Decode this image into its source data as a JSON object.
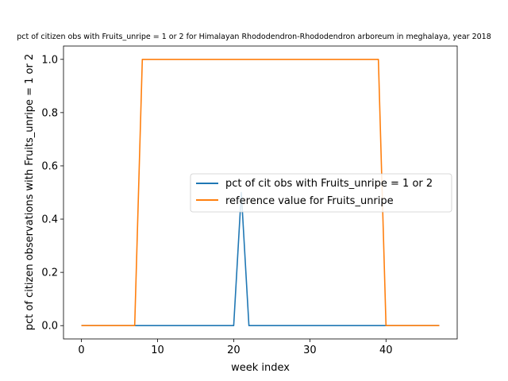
{
  "chart_data": {
    "type": "line",
    "title": "pct of citizen obs with Fruits_unripe = 1 or 2 for Himalayan Rhododendron-Rhododendron arboreum in meghalaya, year 2018",
    "xlabel": "week index",
    "ylabel": "pct of citizen observations with Fruits_unripe = 1 or 2",
    "xlim": [
      -2.35,
      49.35
    ],
    "ylim": [
      -0.05,
      1.05
    ],
    "xticks": [
      0,
      10,
      20,
      30,
      40
    ],
    "yticks": [
      0.0,
      0.2,
      0.4,
      0.6,
      0.8,
      1.0
    ],
    "xtick_labels": [
      "0",
      "10",
      "20",
      "30",
      "40"
    ],
    "ytick_labels": [
      "0.0",
      "0.2",
      "0.4",
      "0.6",
      "0.8",
      "1.0"
    ],
    "grid": false,
    "legend_position": "center-right",
    "x": [
      0,
      1,
      2,
      3,
      4,
      5,
      6,
      7,
      8,
      9,
      10,
      11,
      12,
      13,
      14,
      15,
      16,
      17,
      18,
      19,
      20,
      21,
      22,
      23,
      24,
      25,
      26,
      27,
      28,
      29,
      30,
      31,
      32,
      33,
      34,
      35,
      36,
      37,
      38,
      39,
      40,
      41,
      42,
      43,
      44,
      45,
      46,
      47
    ],
    "series": [
      {
        "name": "pct of cit obs with Fruits_unripe = 1 or 2",
        "color": "#1f77b4",
        "values": [
          0,
          0,
          0,
          0,
          0,
          0,
          0,
          0,
          0,
          0,
          0,
          0,
          0,
          0,
          0,
          0,
          0,
          0,
          0,
          0,
          0,
          0.5,
          0,
          0,
          0,
          0,
          0,
          0,
          0,
          0,
          0,
          0,
          0,
          0,
          0,
          0,
          0,
          0,
          0,
          0,
          0,
          0,
          0,
          0,
          0,
          0,
          0,
          0
        ]
      },
      {
        "name": "reference value for Fruits_unripe",
        "color": "#ff7f0e",
        "values": [
          0,
          0,
          0,
          0,
          0,
          0,
          0,
          0,
          1,
          1,
          1,
          1,
          1,
          1,
          1,
          1,
          1,
          1,
          1,
          1,
          1,
          1,
          1,
          1,
          1,
          1,
          1,
          1,
          1,
          1,
          1,
          1,
          1,
          1,
          1,
          1,
          1,
          1,
          1,
          1,
          0,
          0,
          0,
          0,
          0,
          0,
          0,
          0
        ]
      }
    ]
  }
}
